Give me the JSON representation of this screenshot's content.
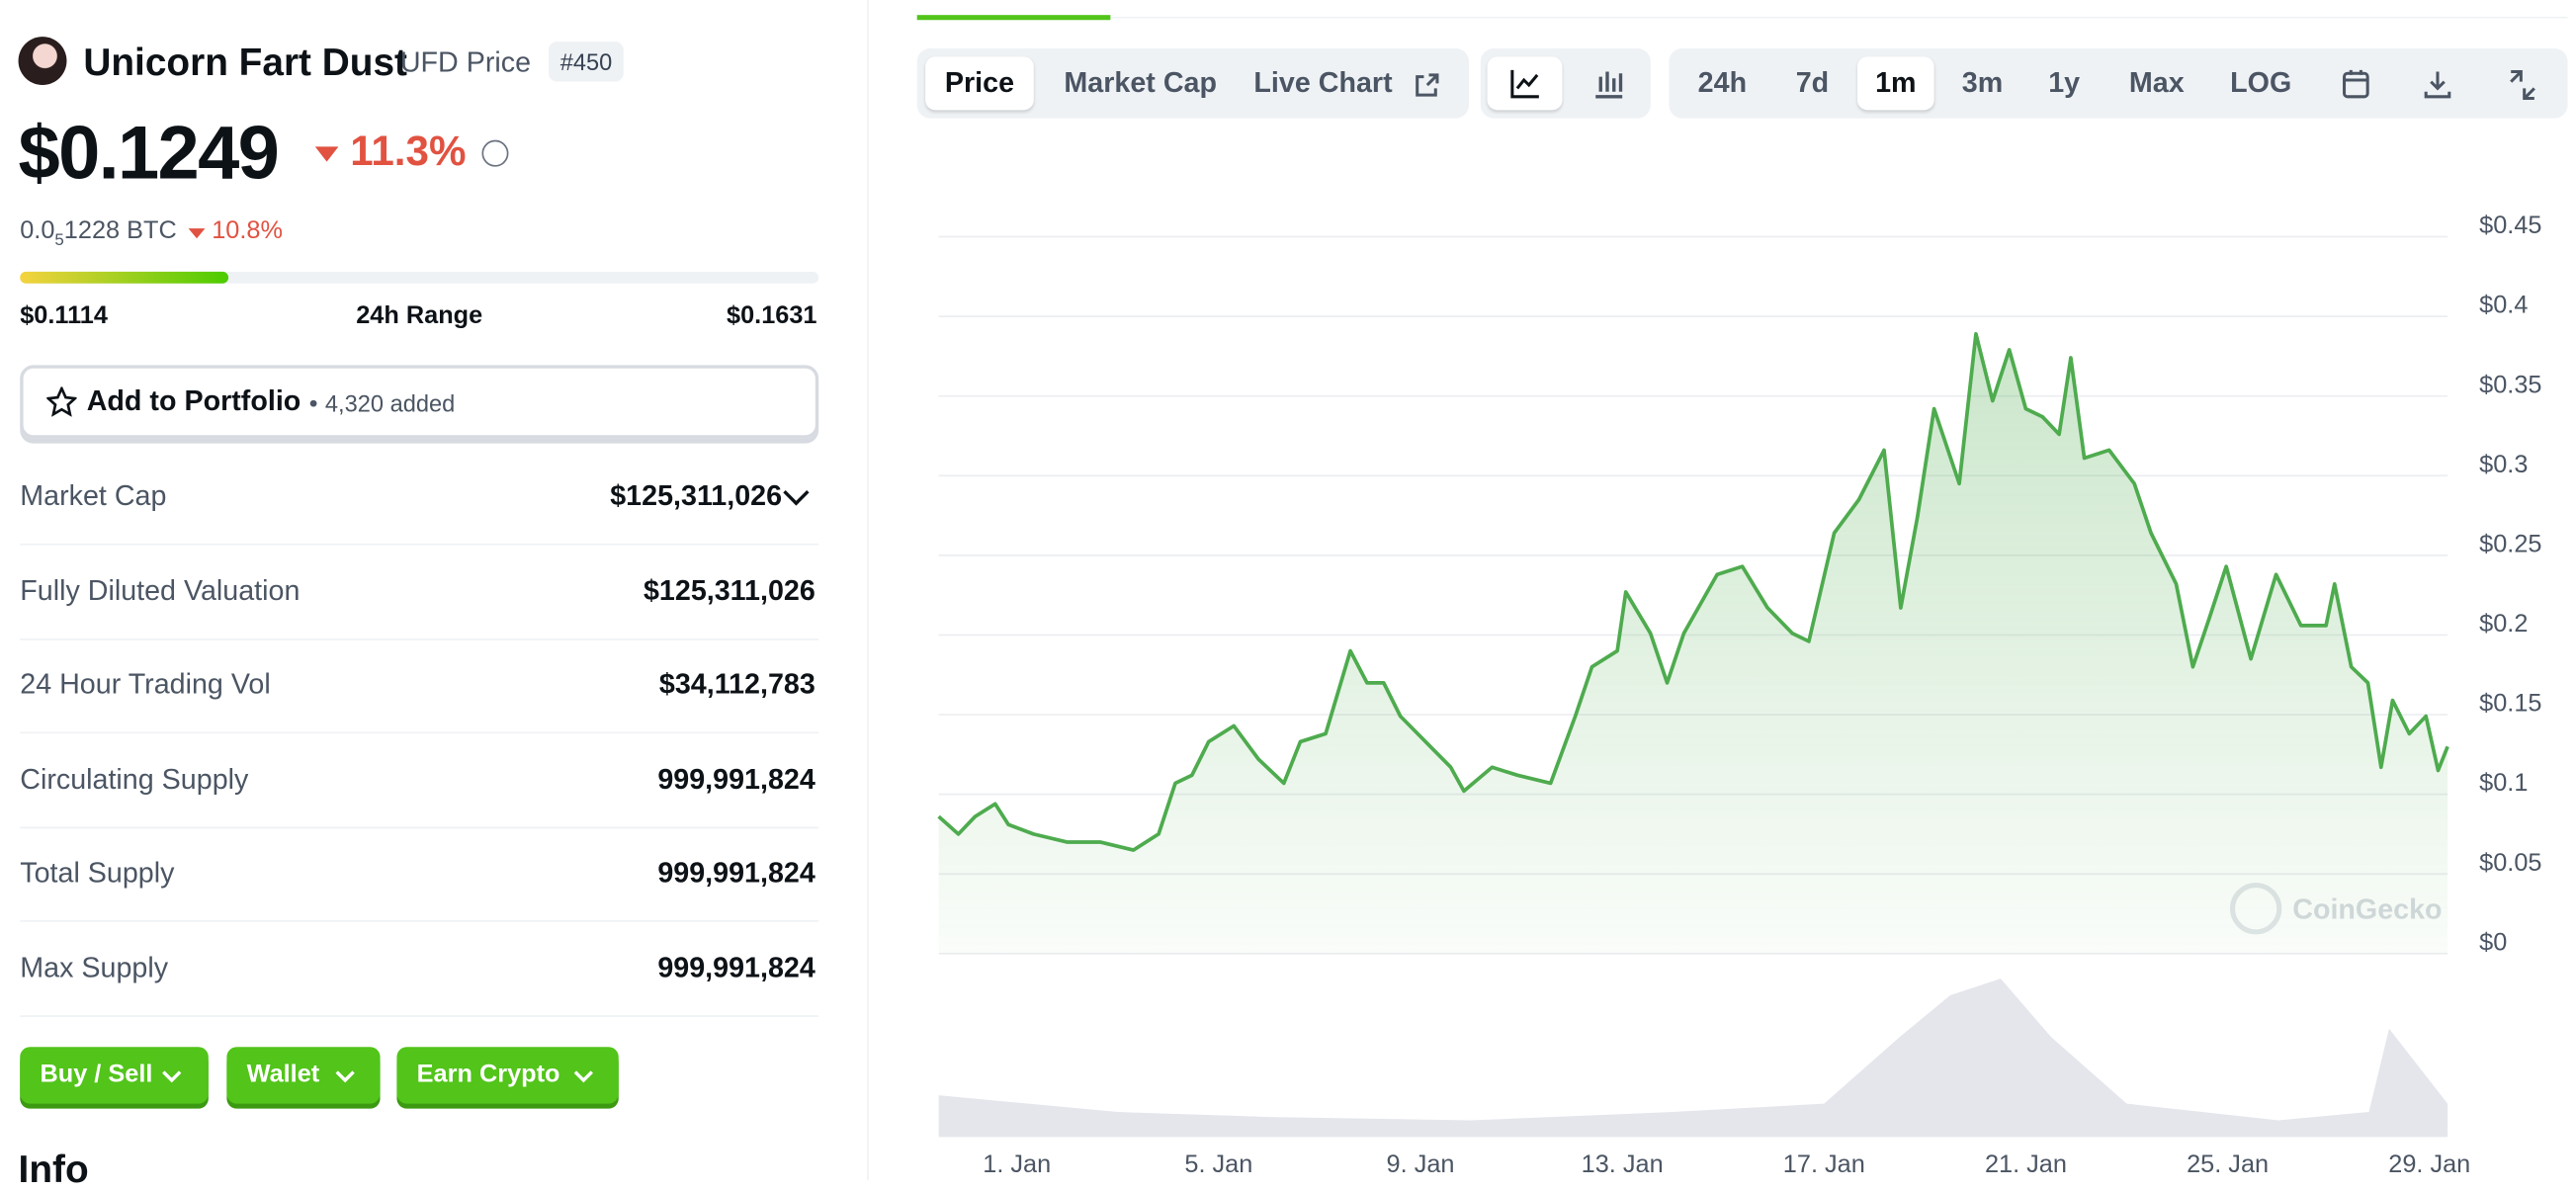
{
  "header": {
    "name": "Unicorn Fart Dust",
    "symbol": "UFD Price",
    "rank": "#450"
  },
  "price": {
    "value": "$0.1249",
    "change": "11.3%",
    "btc_lead": "0.0",
    "btc_sub": "5",
    "btc_rest": "1228 BTC",
    "btc_change": "10.8%"
  },
  "range": {
    "low": "$0.1114",
    "label": "24h Range",
    "high": "$0.1631"
  },
  "portfolio": {
    "label": "Add to Portfolio",
    "count": "4,320 added"
  },
  "stats": [
    {
      "label": "Market Cap",
      "value": "$125,311,026"
    },
    {
      "label": "Fully Diluted Valuation",
      "value": "$125,311,026"
    },
    {
      "label": "24 Hour Trading Vol",
      "value": "$34,112,783"
    },
    {
      "label": "Circulating Supply",
      "value": "999,991,824"
    },
    {
      "label": "Total Supply",
      "value": "999,991,824"
    },
    {
      "label": "Max Supply",
      "value": "999,991,824"
    }
  ],
  "buttons": [
    "Buy / Sell",
    "Wallet",
    "Earn Crypto"
  ],
  "section": "Info",
  "tabs": [
    "Price",
    "Market Cap",
    "Live Chart"
  ],
  "ranges": [
    "24h",
    "7d",
    "1m",
    "3m",
    "1y",
    "Max",
    "LOG"
  ],
  "watermark": "CoinGecko",
  "chart_data": {
    "type": "line",
    "x": [
      -0.55,
      -0.16,
      0.17,
      0.57,
      0.83,
      1.33,
      1.99,
      2.65,
      3.31,
      3.81,
      4.14,
      4.47,
      4.8,
      5.3,
      5.79,
      6.29,
      6.62,
      7.12,
      7.61,
      7.94,
      8.27,
      8.6,
      9.1,
      9.6,
      9.86,
      10.42,
      10.92,
      11.58,
      12.07,
      12.4,
      12.9,
      13.07,
      13.56,
      13.89,
      14.22,
      14.88,
      15.38,
      15.88,
      16.37,
      16.7,
      17.2,
      17.69,
      18.19,
      18.52,
      18.85,
      19.18,
      19.68,
      20.01,
      20.34,
      20.67,
      21.0,
      21.33,
      21.66,
      21.89,
      22.16,
      22.65,
      23.15,
      23.48,
      23.98,
      24.31,
      24.64,
      24.97,
      25.46,
      25.96,
      26.45,
      26.95,
      27.12,
      27.45,
      27.78,
      28.04,
      28.27,
      28.6,
      28.93,
      29.17,
      29.36
    ],
    "series": [
      {
        "name": "Price",
        "color": "#4eab4e",
        "values": [
          0.086,
          0.075,
          0.086,
          0.094,
          0.081,
          0.075,
          0.07,
          0.07,
          0.065,
          0.075,
          0.107,
          0.112,
          0.133,
          0.143,
          0.122,
          0.107,
          0.133,
          0.138,
          0.19,
          0.17,
          0.17,
          0.149,
          0.133,
          0.117,
          0.102,
          0.117,
          0.112,
          0.107,
          0.149,
          0.18,
          0.19,
          0.227,
          0.201,
          0.17,
          0.201,
          0.238,
          0.243,
          0.217,
          0.201,
          0.196,
          0.264,
          0.285,
          0.316,
          0.217,
          0.274,
          0.342,
          0.295,
          0.389,
          0.347,
          0.379,
          0.342,
          0.337,
          0.326,
          0.374,
          0.311,
          0.316,
          0.295,
          0.264,
          0.232,
          0.18,
          0.211,
          0.243,
          0.185,
          0.238,
          0.206,
          0.206,
          0.232,
          0.18,
          0.17,
          0.117,
          0.159,
          0.138,
          0.149,
          0.115,
          0.13
        ]
      }
    ],
    "volume": {
      "color": "#e4e6ec",
      "x": [
        -0.55,
        3,
        6,
        10,
        14,
        17,
        18.5,
        19.5,
        20.5,
        21.5,
        23,
        26,
        27.8,
        28.2,
        29.36
      ],
      "values": [
        25,
        15,
        12,
        10,
        15,
        20,
        60,
        85,
        95,
        60,
        20,
        10,
        15,
        65,
        20
      ],
      "ylim": [
        0,
        100
      ]
    },
    "xlim": [
      -0.55,
      29.36
    ],
    "xticks": [
      {
        "value": 1,
        "label": "1. Jan"
      },
      {
        "value": 5,
        "label": "5. Jan"
      },
      {
        "value": 9,
        "label": "9. Jan"
      },
      {
        "value": 13,
        "label": "13. Jan"
      },
      {
        "value": 17,
        "label": "17. Jan"
      },
      {
        "value": 21,
        "label": "21. Jan"
      },
      {
        "value": 25,
        "label": "25. Jan"
      },
      {
        "value": 29,
        "label": "29. Jan"
      }
    ],
    "ylim": [
      0,
      0.45
    ],
    "yticks": [
      {
        "value": 0,
        "label": "$0"
      },
      {
        "value": 0.05,
        "label": "$0.05"
      },
      {
        "value": 0.1,
        "label": "$0.1"
      },
      {
        "value": 0.15,
        "label": "$0.15"
      },
      {
        "value": 0.2,
        "label": "$0.2"
      },
      {
        "value": 0.25,
        "label": "$0.25"
      },
      {
        "value": 0.3,
        "label": "$0.3"
      },
      {
        "value": 0.35,
        "label": "$0.35"
      },
      {
        "value": 0.4,
        "label": "$0.4"
      },
      {
        "value": 0.45,
        "label": "$0.45"
      }
    ],
    "grid": true
  }
}
